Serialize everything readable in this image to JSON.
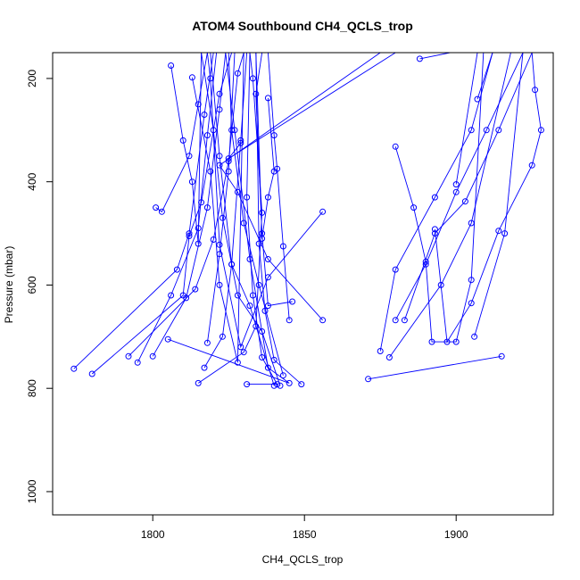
{
  "chart_data": {
    "type": "scatter",
    "title": "ATOM4 Southbound CH4_QCLS_trop",
    "xlabel": "CH4_QCLS_trop",
    "ylabel": "Pressure (mbar)",
    "xlim": [
      1767,
      1932
    ],
    "ylim": [
      1045,
      150
    ],
    "y_reversed": true,
    "x_ticks": [
      1800,
      1850,
      1900
    ],
    "y_ticks": [
      200,
      400,
      600,
      800,
      1000
    ],
    "color": "#0000ff",
    "marker": "open-circle",
    "grid": false,
    "series": [
      {
        "points": [
          [
            1774,
            762
          ],
          [
            1808,
            570
          ],
          [
            1812,
            500
          ],
          [
            1817,
            270
          ],
          [
            1820,
            150
          ]
        ]
      },
      {
        "points": [
          [
            1780,
            772
          ],
          [
            1810,
            620
          ],
          [
            1812,
            505
          ],
          [
            1816,
            440
          ],
          [
            1822,
            230
          ],
          [
            1826,
            150
          ]
        ]
      },
      {
        "points": [
          [
            1792,
            738
          ],
          [
            1814,
            608
          ],
          [
            1820,
            512
          ],
          [
            1825,
            360
          ],
          [
            1828,
            190
          ],
          [
            1830,
            150
          ]
        ]
      },
      {
        "points": [
          [
            1795,
            750
          ],
          [
            1806,
            620
          ],
          [
            1815,
            490
          ],
          [
            1818,
            310
          ],
          [
            1821,
            150
          ]
        ]
      },
      {
        "points": [
          [
            1800,
            738
          ],
          [
            1811,
            625
          ],
          [
            1818,
            450
          ],
          [
            1822,
            260
          ],
          [
            1824,
            150
          ]
        ]
      },
      {
        "points": [
          [
            1805,
            705
          ],
          [
            1845,
            790
          ],
          [
            1838,
            760
          ],
          [
            1832,
            550
          ],
          [
            1827,
            300
          ],
          [
            1824,
            150
          ]
        ]
      },
      {
        "points": [
          [
            1815,
            790
          ],
          [
            1830,
            730
          ],
          [
            1834,
            680
          ],
          [
            1836,
            460
          ],
          [
            1833,
            200
          ],
          [
            1832,
            150
          ]
        ]
      },
      {
        "points": [
          [
            1817,
            760
          ],
          [
            1823,
            700
          ],
          [
            1826,
            560
          ],
          [
            1829,
            320
          ],
          [
            1831,
            150
          ]
        ]
      },
      {
        "points": [
          [
            1818,
            712
          ],
          [
            1822,
            540
          ],
          [
            1825,
            380
          ],
          [
            1827,
            150
          ]
        ]
      },
      {
        "points": [
          [
            1831,
            792
          ],
          [
            1841,
            792
          ],
          [
            1836,
            740
          ],
          [
            1833,
            620
          ],
          [
            1831,
            430
          ],
          [
            1832,
            150
          ]
        ]
      },
      {
        "points": [
          [
            1849,
            792
          ],
          [
            1840,
            745
          ],
          [
            1837,
            650
          ],
          [
            1835,
            520
          ],
          [
            1834,
            150
          ]
        ]
      },
      {
        "points": [
          [
            1845,
            668
          ],
          [
            1843,
            525
          ],
          [
            1841,
            375
          ],
          [
            1840,
            310
          ],
          [
            1838,
            150
          ]
        ]
      },
      {
        "points": [
          [
            1846,
            632
          ],
          [
            1838,
            640
          ],
          [
            1836,
            500
          ],
          [
            1834,
            230
          ],
          [
            1836,
            150
          ]
        ]
      },
      {
        "points": [
          [
            1856,
            668
          ],
          [
            1838,
            550
          ],
          [
            1828,
            420
          ],
          [
            1822,
            368
          ],
          [
            1875,
            150
          ]
        ]
      },
      {
        "points": [
          [
            1856,
            458
          ],
          [
            1838,
            585
          ],
          [
            1829,
            720
          ],
          [
            1822,
            522
          ],
          [
            1819,
            200
          ],
          [
            1818,
            150
          ]
        ]
      },
      {
        "points": [
          [
            1840,
            795
          ],
          [
            1832,
            640
          ],
          [
            1826,
            560
          ],
          [
            1822,
            350
          ],
          [
            1819,
            150
          ]
        ]
      },
      {
        "points": [
          [
            1843,
            775
          ],
          [
            1835,
            600
          ],
          [
            1830,
            480
          ],
          [
            1826,
            300
          ],
          [
            1825,
            150
          ]
        ]
      },
      {
        "points": [
          [
            1842,
            795
          ],
          [
            1836,
            690
          ],
          [
            1828,
            620
          ],
          [
            1823,
            470
          ],
          [
            1820,
            300
          ],
          [
            1816,
            150
          ]
        ]
      },
      {
        "points": [
          [
            1801,
            450
          ],
          [
            1803,
            458
          ],
          [
            1812,
            350
          ],
          [
            1815,
            250
          ],
          [
            1818,
            150
          ]
        ]
      },
      {
        "points": [
          [
            1806,
            175
          ],
          [
            1810,
            320
          ],
          [
            1813,
            400
          ],
          [
            1815,
            520
          ],
          [
            1816,
            150
          ]
        ]
      },
      {
        "points": [
          [
            1813,
            198
          ],
          [
            1819,
            380
          ],
          [
            1822,
            600
          ],
          [
            1828,
            750
          ],
          [
            1830,
            150
          ]
        ]
      },
      {
        "points": [
          [
            1829,
            325
          ],
          [
            1825,
            355
          ],
          [
            1880,
            150
          ]
        ]
      },
      {
        "points": [
          [
            1838,
            238
          ],
          [
            1840,
            380
          ],
          [
            1838,
            430
          ],
          [
            1836,
            510
          ],
          [
            1834,
            150
          ]
        ]
      },
      {
        "points": [
          [
            1871,
            782
          ],
          [
            1915,
            738
          ]
        ]
      },
      {
        "points": [
          [
            1875,
            728
          ],
          [
            1880,
            570
          ],
          [
            1893,
            430
          ],
          [
            1905,
            300
          ],
          [
            1912,
            150
          ]
        ]
      },
      {
        "points": [
          [
            1878,
            740
          ],
          [
            1895,
            600
          ],
          [
            1905,
            480
          ],
          [
            1918,
            150
          ]
        ]
      },
      {
        "points": [
          [
            1880,
            668
          ],
          [
            1890,
            560
          ],
          [
            1900,
            420
          ],
          [
            1910,
            300
          ],
          [
            1922,
            150
          ]
        ]
      },
      {
        "points": [
          [
            1883,
            668
          ],
          [
            1893,
            500
          ],
          [
            1903,
            438
          ],
          [
            1914,
            300
          ],
          [
            1925,
            150
          ]
        ]
      },
      {
        "points": [
          [
            1880,
            332
          ],
          [
            1886,
            450
          ],
          [
            1890,
            555
          ],
          [
            1892,
            710
          ],
          [
            1900,
            710
          ],
          [
            1905,
            590
          ],
          [
            1909,
            150
          ]
        ]
      },
      {
        "points": [
          [
            1888,
            162
          ],
          [
            1898,
            150
          ]
        ]
      },
      {
        "points": [
          [
            1893,
            492
          ],
          [
            1897,
            710
          ],
          [
            1905,
            635
          ],
          [
            1914,
            495
          ],
          [
            1925,
            368
          ],
          [
            1928,
            300
          ],
          [
            1926,
            222
          ],
          [
            1925,
            150
          ]
        ]
      },
      {
        "points": [
          [
            1900,
            405
          ],
          [
            1907,
            150
          ]
        ]
      },
      {
        "points": [
          [
            1906,
            700
          ],
          [
            1916,
            500
          ],
          [
            1922,
            150
          ]
        ]
      },
      {
        "points": [
          [
            1907,
            240
          ],
          [
            1912,
            150
          ]
        ]
      }
    ]
  }
}
